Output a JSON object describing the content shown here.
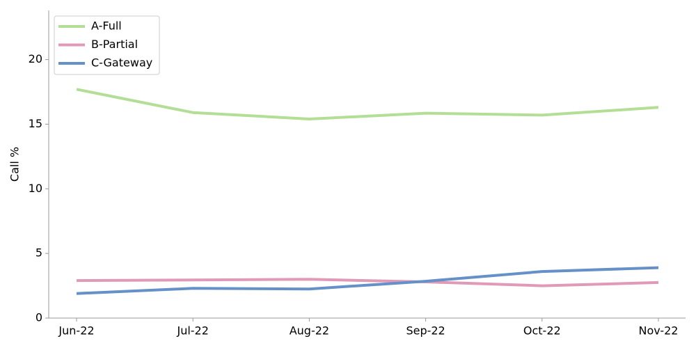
{
  "chart_data": {
    "type": "line",
    "y_label": "Call %",
    "categories": [
      "Jun-22",
      "Jul-22",
      "Aug-22",
      "Sep-22",
      "Oct-22",
      "Nov-22"
    ],
    "series": [
      {
        "name": "A-Full",
        "color": "#b3de95",
        "values": [
          17.7,
          15.9,
          15.4,
          15.85,
          15.7,
          16.3
        ]
      },
      {
        "name": "B-Partial",
        "color": "#e09ab8",
        "values": [
          2.9,
          2.95,
          3.0,
          2.8,
          2.5,
          2.75
        ]
      },
      {
        "name": "C-Gateway",
        "color": "#6590c8",
        "values": [
          1.9,
          2.3,
          2.25,
          2.85,
          3.6,
          3.9
        ]
      }
    ],
    "ylim": [
      0,
      23.8
    ],
    "yticks": [
      0,
      5,
      10,
      15,
      20
    ],
    "legend": "upper-left"
  }
}
